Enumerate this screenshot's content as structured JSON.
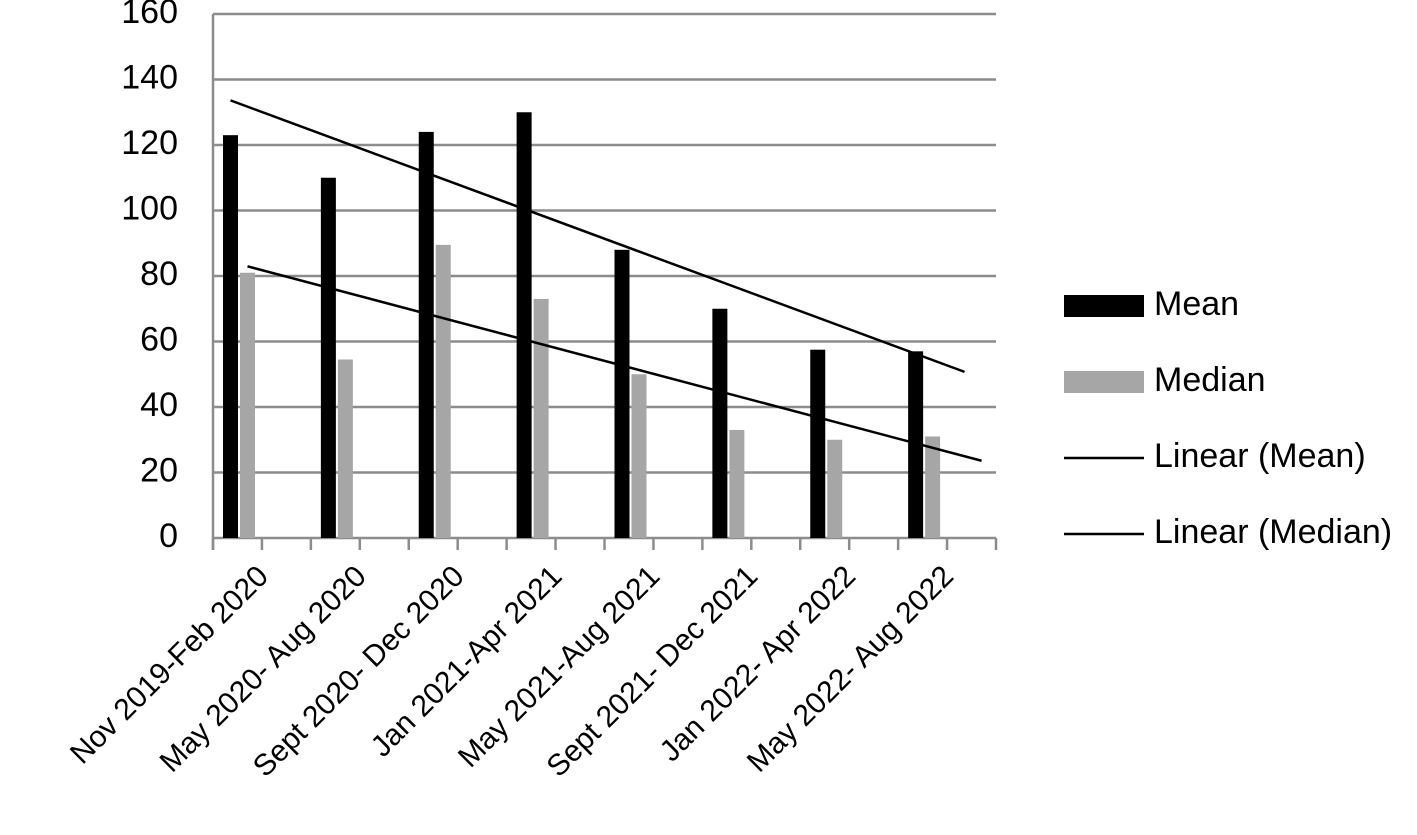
{
  "chart_data": {
    "type": "bar",
    "title": "",
    "xlabel": "",
    "ylabel": "",
    "categories": [
      "Nov 2019-Feb 2020",
      "May 2020- Aug 2020",
      "Sept 2020- Dec 2020",
      "Jan 2021-Apr 2021",
      "May 2021-Aug 2021",
      "Sept 2021- Dec 2021",
      "Jan 2022- Apr 2022",
      "May 2022- Aug 2022"
    ],
    "series": [
      {
        "name": "Mean",
        "color": "#000000",
        "values": [
          123,
          110,
          124,
          130,
          88,
          70,
          57.5,
          57
        ]
      },
      {
        "name": "Median",
        "color": "#a6a6a6",
        "values": [
          81,
          54.5,
          89.5,
          73,
          50,
          33,
          30,
          31
        ]
      }
    ],
    "trendlines": [
      {
        "name": "Linear (Mean)",
        "of": "Mean",
        "type": "linear",
        "color": "#000000"
      },
      {
        "name": "Linear (Median)",
        "of": "Median",
        "type": "linear",
        "color": "#000000"
      }
    ],
    "ylim": [
      0,
      160
    ],
    "yticks": [
      "0",
      "20",
      "40",
      "60",
      "80",
      "100",
      "120",
      "140",
      "160"
    ],
    "grid": true,
    "legend_position": "right"
  }
}
